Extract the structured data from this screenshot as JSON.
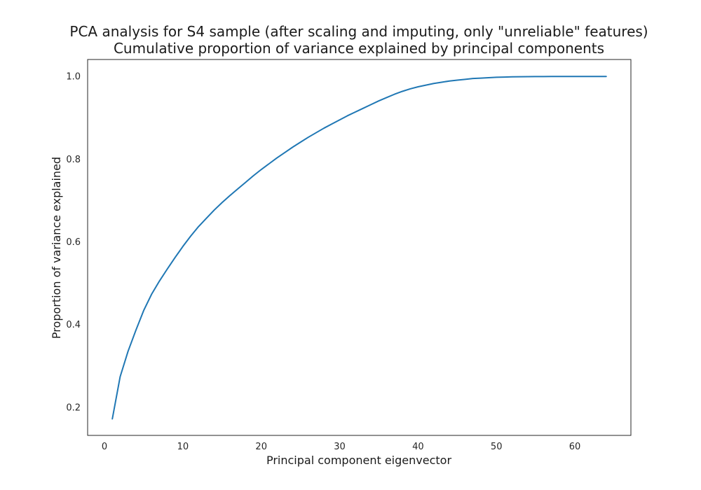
{
  "chart_data": {
    "type": "line",
    "title": "PCA analysis for S4 sample (after scaling and imputing, only \"unreliable\" features)",
    "subtitle": "Cumulative proportion of variance explained by principal components",
    "xlabel": "Principal component eigenvector",
    "ylabel": "Proportion of variance explained",
    "xlim": [
      -2.15,
      67.15
    ],
    "ylim": [
      0.132,
      1.041
    ],
    "xticks": [
      0,
      10,
      20,
      30,
      40,
      50,
      60
    ],
    "yticks": [
      0.2,
      0.4,
      0.6,
      0.8,
      1.0
    ],
    "xtick_labels": [
      "0",
      "10",
      "20",
      "30",
      "40",
      "50",
      "60"
    ],
    "ytick_labels": [
      "0.2",
      "0.4",
      "0.6",
      "0.8",
      "1.0"
    ],
    "grid": false,
    "line_color": "#1f77b4",
    "series": [
      {
        "x": [
          1,
          2,
          3,
          4,
          5,
          6,
          7,
          8,
          9,
          10,
          11,
          12,
          13,
          14,
          15,
          16,
          17,
          18,
          19,
          20,
          21,
          22,
          23,
          24,
          25,
          26,
          27,
          28,
          29,
          30,
          31,
          32,
          33,
          34,
          35,
          36,
          37,
          38,
          39,
          40,
          41,
          42,
          43,
          44,
          45,
          46,
          47,
          48,
          49,
          50,
          51,
          52,
          53,
          54,
          55,
          56,
          57,
          58,
          59,
          60,
          61,
          62,
          63,
          64
        ],
        "values": [
          0.172,
          0.274,
          0.335,
          0.386,
          0.434,
          0.473,
          0.505,
          0.534,
          0.562,
          0.589,
          0.614,
          0.637,
          0.657,
          0.677,
          0.695,
          0.712,
          0.728,
          0.744,
          0.76,
          0.775,
          0.789,
          0.803,
          0.816,
          0.829,
          0.841,
          0.853,
          0.864,
          0.875,
          0.885,
          0.895,
          0.905,
          0.914,
          0.923,
          0.932,
          0.941,
          0.949,
          0.957,
          0.964,
          0.97,
          0.975,
          0.979,
          0.983,
          0.986,
          0.989,
          0.991,
          0.993,
          0.995,
          0.996,
          0.997,
          0.998,
          0.9985,
          0.999,
          0.9993,
          0.9995,
          0.9997,
          0.9998,
          0.9999,
          0.99995,
          1.0,
          1.0,
          1.0,
          1.0,
          1.0,
          1.0
        ]
      }
    ]
  }
}
